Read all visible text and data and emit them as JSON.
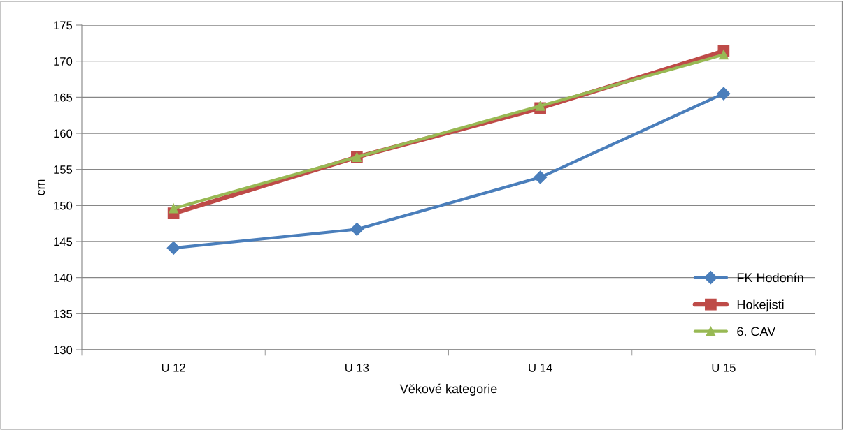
{
  "chart_data": {
    "type": "line",
    "xlabel": "Věkové kategorie",
    "ylabel": "cm",
    "categories": [
      "U 12",
      "U 13",
      "U 14",
      "U 15"
    ],
    "series": [
      {
        "name": "FK Hodonín",
        "color": "#4a7ebb",
        "marker": "diamond",
        "values": [
          144.1,
          146.7,
          153.9,
          165.5
        ]
      },
      {
        "name": "Hokejisti",
        "color": "#be4b48",
        "marker": "square",
        "values": [
          148.9,
          156.7,
          163.5,
          171.4
        ]
      },
      {
        "name": "6. CAV",
        "color": "#98b954",
        "marker": "triangle",
        "values": [
          149.6,
          156.7,
          163.8,
          170.9
        ]
      }
    ],
    "ylim": [
      130,
      175
    ],
    "yticks": [
      130,
      135,
      140,
      145,
      150,
      155,
      160,
      165,
      170,
      175
    ],
    "grid": "y",
    "legend": "bottom right",
    "line_style": "solid"
  }
}
